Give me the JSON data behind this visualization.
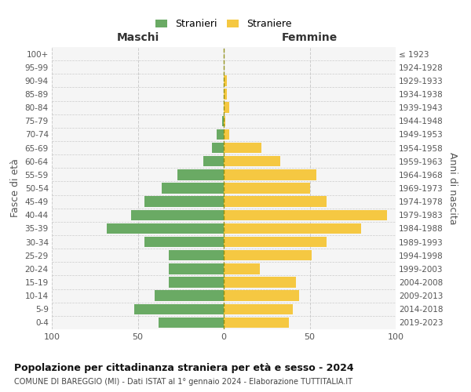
{
  "age_groups": [
    "0-4",
    "5-9",
    "10-14",
    "15-19",
    "20-24",
    "25-29",
    "30-34",
    "35-39",
    "40-44",
    "45-49",
    "50-54",
    "55-59",
    "60-64",
    "65-69",
    "70-74",
    "75-79",
    "80-84",
    "85-89",
    "90-94",
    "95-99",
    "100+"
  ],
  "birth_years": [
    "2019-2023",
    "2014-2018",
    "2009-2013",
    "2004-2008",
    "1999-2003",
    "1994-1998",
    "1989-1993",
    "1984-1988",
    "1979-1983",
    "1974-1978",
    "1969-1973",
    "1964-1968",
    "1959-1963",
    "1954-1958",
    "1949-1953",
    "1944-1948",
    "1939-1943",
    "1934-1938",
    "1929-1933",
    "1924-1928",
    "≤ 1923"
  ],
  "males": [
    38,
    52,
    40,
    32,
    32,
    32,
    46,
    68,
    54,
    46,
    36,
    27,
    12,
    7,
    4,
    1,
    0,
    0,
    0,
    0,
    0
  ],
  "females": [
    38,
    40,
    44,
    42,
    21,
    51,
    60,
    80,
    95,
    60,
    50,
    54,
    33,
    22,
    3,
    1,
    3,
    2,
    2,
    0,
    0
  ],
  "male_color": "#6aaa64",
  "female_color": "#f5c842",
  "bg_color": "#f5f5f5",
  "grid_color": "#cccccc",
  "center_line_color": "#888800",
  "title": "Popolazione per cittadinanza straniera per età e sesso - 2024",
  "subtitle": "COMUNE DI BAREGGIO (MI) - Dati ISTAT al 1° gennaio 2024 - Elaborazione TUTTITALIA.IT",
  "ylabel_left": "Fasce di età",
  "ylabel_right": "Anni di nascita",
  "xlabel_left": "Maschi",
  "xlabel_right": "Femmine",
  "legend_stranieri": "Stranieri",
  "legend_straniere": "Straniere",
  "xlim": 100
}
